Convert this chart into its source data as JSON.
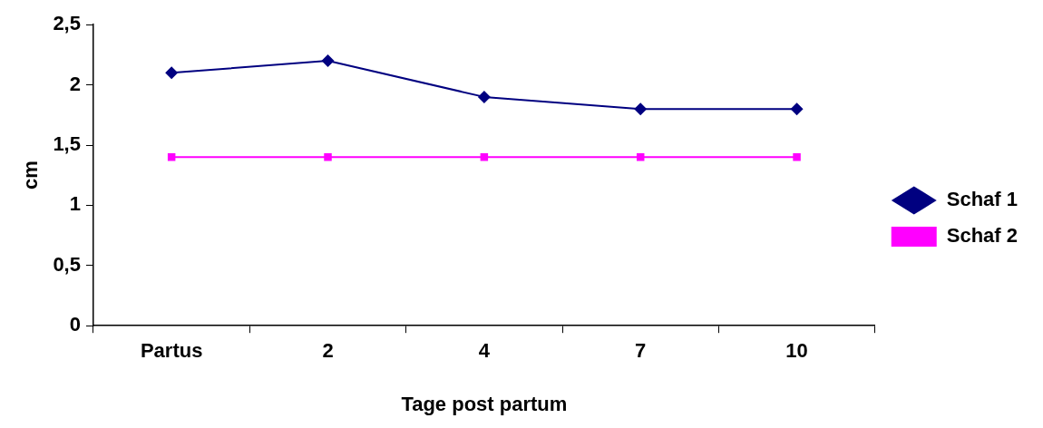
{
  "chart_data": {
    "type": "line",
    "xlabel": "Tage post partum",
    "ylabel": "cm",
    "categories": [
      "Partus",
      "2",
      "4",
      "7",
      "10"
    ],
    "series": [
      {
        "name": "Schaf 1",
        "color": "#000080",
        "marker": "diamond",
        "values": [
          2.1,
          2.2,
          1.9,
          1.8,
          1.8
        ]
      },
      {
        "name": "Schaf 2",
        "color": "#ff00ff",
        "marker": "square",
        "values": [
          1.4,
          1.4,
          1.4,
          1.4,
          1.4
        ]
      }
    ],
    "ylim": [
      0,
      2.5
    ],
    "yticks": [
      {
        "value": 0,
        "label": "0"
      },
      {
        "value": 0.5,
        "label": "0,5"
      },
      {
        "value": 1,
        "label": "1"
      },
      {
        "value": 1.5,
        "label": "1,5"
      },
      {
        "value": 2,
        "label": "2"
      },
      {
        "value": 2.5,
        "label": "2,5"
      }
    ],
    "grid": false,
    "legend": "right",
    "line_style": "solid"
  }
}
